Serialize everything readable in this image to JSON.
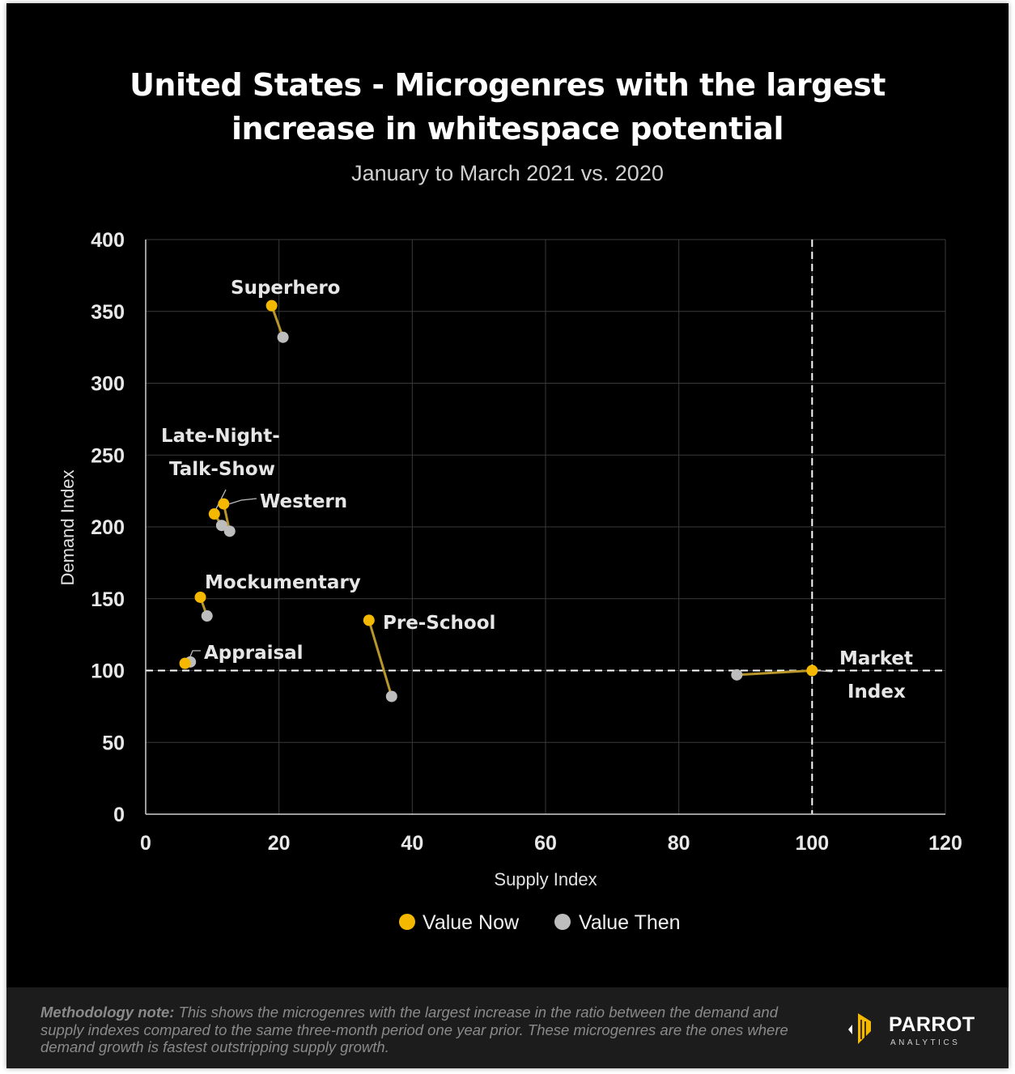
{
  "title_line1": "United States - Microgenres with the largest",
  "title_line2": "increase in whitespace potential",
  "subtitle": "January to March 2021 vs. 2020",
  "chart_data": {
    "type": "scatter",
    "xlabel": "Supply Index",
    "ylabel": "Demand Index",
    "xlim": [
      0,
      120
    ],
    "ylim": [
      0,
      400
    ],
    "x_ticks": [
      0,
      20,
      40,
      60,
      80,
      100,
      120
    ],
    "y_ticks": [
      0,
      50,
      100,
      150,
      200,
      250,
      300,
      350,
      400
    ],
    "grid": true,
    "legend_position": "bottom",
    "series": [
      {
        "name": "Value Now",
        "color": "#F5B800"
      },
      {
        "name": "Value Then",
        "color": "#BDBDBD"
      }
    ],
    "reference_lines": {
      "x": 100,
      "y": 100
    },
    "points": [
      {
        "label": "Superhero",
        "now": [
          18.9,
          354
        ],
        "then": [
          20.6,
          332
        ]
      },
      {
        "label": "Late-Night-Talk-Show",
        "now": [
          10.3,
          209
        ],
        "then": [
          11.4,
          201
        ]
      },
      {
        "label": "Western",
        "now": [
          11.7,
          216
        ],
        "then": [
          12.6,
          197
        ]
      },
      {
        "label": "Mockumentary",
        "now": [
          8.2,
          151
        ],
        "then": [
          9.2,
          138
        ]
      },
      {
        "label": "Pre-School",
        "now": [
          33.5,
          135
        ],
        "then": [
          36.9,
          82
        ]
      },
      {
        "label": "Appraisal",
        "now": [
          5.9,
          105
        ],
        "then": [
          6.7,
          106
        ]
      },
      {
        "label": "Market Index",
        "now": [
          100,
          100
        ],
        "then": [
          88.7,
          97
        ]
      }
    ],
    "labels": {
      "superhero": "Superhero",
      "late_night_1": "Late-Night-",
      "late_night_2": "Talk-Show",
      "western": "Western",
      "mockumentary": "Mockumentary",
      "preschool": "Pre-School",
      "appraisal": "Appraisal",
      "market_1": "Market",
      "market_2": "Index"
    }
  },
  "footer": {
    "note_bold": "Methodology note:",
    "note_text": " This shows the microgenres with the largest increase in the ratio between the demand and supply indexes compared to the same three-month period one year prior. These microgenres are the ones where demand growth is fastest outstripping supply growth.",
    "logo_word": "PARROT",
    "logo_sub": "ANALYTICS"
  }
}
